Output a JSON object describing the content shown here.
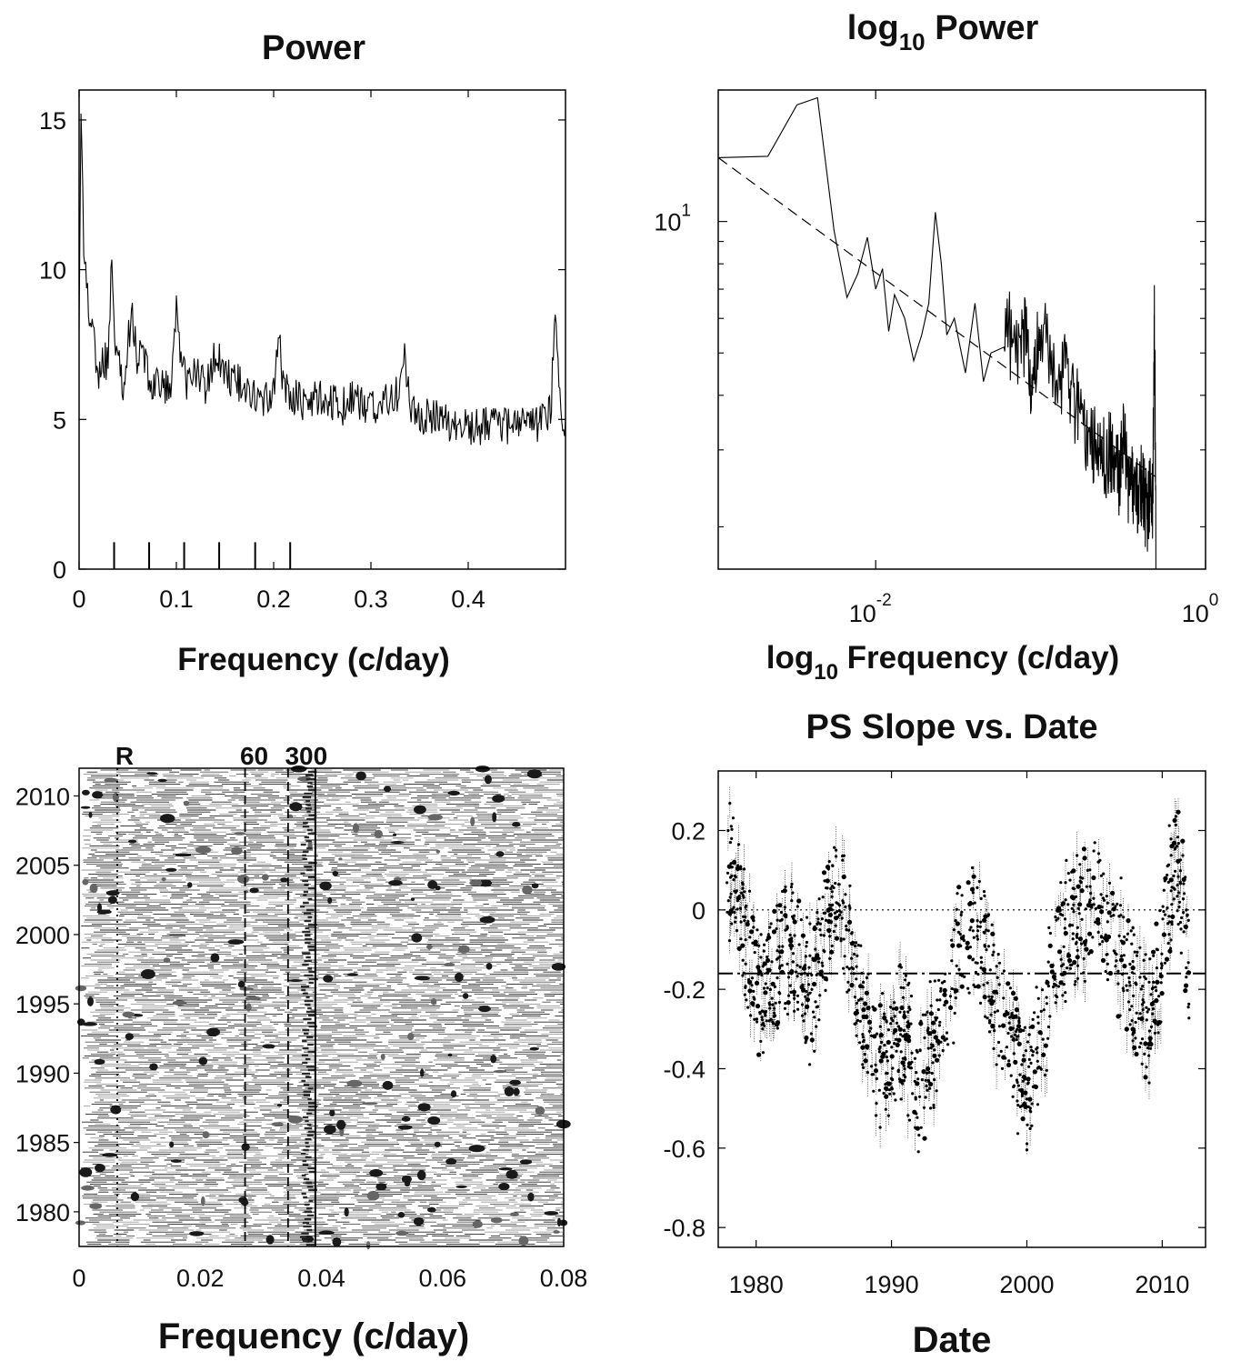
{
  "chart_data": [
    {
      "id": "power",
      "type": "line",
      "title": "Power",
      "xlabel": "Frequency (c/day)",
      "ylabel": "",
      "xlim": [
        0,
        0.5
      ],
      "ylim": [
        0,
        16
      ],
      "xticks": [
        0,
        0.1,
        0.2,
        0.3,
        0.4
      ],
      "xtick_labels": [
        "0",
        "0.1",
        "0.2",
        "0.3",
        "0.4"
      ],
      "yticks": [
        0,
        5,
        10,
        15
      ],
      "ytick_labels": [
        "0",
        "5",
        "10",
        "15"
      ],
      "markers_x": [
        0.036,
        0.072,
        0.108,
        0.144,
        0.181,
        0.217
      ],
      "markers_height": 0.9,
      "x": [
        0.0,
        0.002,
        0.005,
        0.01,
        0.015,
        0.02,
        0.025,
        0.03,
        0.033,
        0.036,
        0.04,
        0.045,
        0.05,
        0.055,
        0.06,
        0.065,
        0.07,
        0.075,
        0.08,
        0.085,
        0.09,
        0.095,
        0.1,
        0.105,
        0.11,
        0.12,
        0.13,
        0.14,
        0.15,
        0.16,
        0.17,
        0.18,
        0.19,
        0.2,
        0.205,
        0.21,
        0.22,
        0.23,
        0.24,
        0.25,
        0.26,
        0.27,
        0.28,
        0.29,
        0.3,
        0.31,
        0.32,
        0.33,
        0.335,
        0.34,
        0.35,
        0.36,
        0.37,
        0.38,
        0.39,
        0.4,
        0.41,
        0.42,
        0.43,
        0.44,
        0.45,
        0.46,
        0.47,
        0.48,
        0.485,
        0.49,
        0.495,
        0.5
      ],
      "y": [
        8.0,
        15.5,
        10.5,
        8.5,
        7.5,
        6.5,
        7.0,
        6.8,
        10.5,
        8.0,
        7.0,
        6.2,
        7.5,
        8.5,
        7.0,
        7.2,
        6.8,
        6.0,
        6.5,
        6.0,
        6.2,
        6.0,
        8.8,
        7.0,
        6.2,
        6.6,
        6.0,
        7.2,
        6.5,
        6.3,
        6.1,
        5.8,
        5.5,
        6.0,
        8.0,
        6.0,
        5.8,
        5.6,
        5.7,
        5.8,
        5.6,
        5.4,
        5.7,
        5.5,
        5.4,
        5.5,
        5.6,
        6.0,
        7.2,
        5.4,
        5.2,
        5.0,
        5.1,
        4.9,
        4.9,
        4.8,
        4.7,
        4.8,
        4.9,
        4.8,
        4.9,
        5.0,
        4.8,
        5.0,
        5.3,
        9.0,
        5.2,
        4.5
      ]
    },
    {
      "id": "log-power",
      "type": "line",
      "title": "log10 Power",
      "xlabel": "log10 Frequency (c/day)",
      "ylabel": "",
      "xscale": "log",
      "yscale": "log",
      "xlim": [
        0.00111,
        1
      ],
      "ylim": [
        1.6,
        20
      ],
      "xticks": [
        0.01,
        1
      ],
      "xtick_labels": [
        "10",
        "10"
      ],
      "xtick_exponents": [
        "-2",
        "0"
      ],
      "yticks": [
        10
      ],
      "ytick_labels": [
        "10"
      ],
      "ytick_exponents": [
        "1"
      ],
      "series": [
        {
          "style": "solid",
          "x": [
            0.00111,
            0.00222,
            0.00333,
            0.00444,
            0.0056,
            0.0067,
            0.0078,
            0.0089,
            0.01,
            0.011,
            0.012,
            0.013,
            0.015,
            0.017,
            0.019,
            0.021,
            0.023,
            0.025,
            0.027,
            0.03,
            0.035,
            0.04,
            0.045,
            0.05,
            0.06,
            0.07,
            0.08,
            0.09,
            0.1,
            0.12,
            0.14,
            0.16,
            0.18,
            0.2,
            0.22,
            0.24,
            0.26,
            0.28,
            0.3,
            0.32,
            0.34,
            0.36,
            0.38,
            0.4,
            0.42,
            0.44,
            0.46,
            0.48,
            0.49,
            0.5
          ],
          "y": [
            14.0,
            14.1,
            18.5,
            19.2,
            9.5,
            6.7,
            7.6,
            9.2,
            7.0,
            7.8,
            5.6,
            6.8,
            6.0,
            4.8,
            5.5,
            6.5,
            10.5,
            8.0,
            5.5,
            6.0,
            4.5,
            6.5,
            4.3,
            5.0,
            6.5,
            4.8,
            5.6,
            4.2,
            5.8,
            4.5,
            4.6,
            4.0,
            3.5,
            3.2,
            3.3,
            2.9,
            3.1,
            2.8,
            2.7,
            3.2,
            2.6,
            2.5,
            2.3,
            2.6,
            2.4,
            2.2,
            2.5,
            2.3,
            6.2,
            1.6
          ]
        },
        {
          "style": "dashed",
          "x": [
            0.00111,
            0.5
          ],
          "y": [
            14.0,
            2.6
          ]
        }
      ]
    },
    {
      "id": "spectrogram",
      "type": "heatmap",
      "title": "",
      "xlabel": "Frequency (c/day)",
      "ylabel": "",
      "xlim": [
        0,
        0.08
      ],
      "ylim": [
        1977.5,
        2012.0
      ],
      "xticks": [
        0,
        0.02,
        0.04,
        0.06,
        0.08
      ],
      "xtick_labels": [
        "0",
        "0.02",
        "0.04",
        "0.06",
        "0.08"
      ],
      "yticks": [
        1980,
        1985,
        1990,
        1995,
        2000,
        2005,
        2010
      ],
      "ytick_labels": [
        "1980",
        "1985",
        "1990",
        "1995",
        "2000",
        "2005",
        "2010"
      ],
      "reference_lines": [
        {
          "label": "R",
          "x": 0.0063,
          "style": "dotted"
        },
        {
          "label": "60",
          "x": 0.0274,
          "style": "dashed"
        },
        {
          "label": "300",
          "x": 0.0345,
          "style": "dashed"
        },
        {
          "label": "",
          "x": 0.039,
          "style": "solid"
        }
      ]
    },
    {
      "id": "ps-slope",
      "type": "scatter",
      "title": "PS Slope vs. Date",
      "xlabel": "Date",
      "ylabel": "",
      "xlim": [
        1977.2,
        2013.2
      ],
      "ylim": [
        -0.85,
        0.35
      ],
      "xticks": [
        1980,
        1990,
        2000,
        2010
      ],
      "xtick_labels": [
        "1980",
        "1990",
        "2000",
        "2010"
      ],
      "yticks": [
        0.2,
        0,
        -0.2,
        -0.4,
        -0.6,
        -0.8
      ],
      "ytick_labels": [
        "0.2",
        "0",
        "-0.2",
        "-0.4",
        "-0.6",
        "-0.8"
      ],
      "hlines": [
        {
          "y": 0,
          "style": "dotted"
        },
        {
          "y": -0.16,
          "style": "dashdot"
        }
      ],
      "trend": {
        "x": [
          1977.8,
          1978.2,
          1979,
          1980,
          1981,
          1982,
          1983,
          1984,
          1985,
          1986,
          1987,
          1988,
          1989,
          1990,
          1991,
          1992,
          1993,
          1994,
          1995,
          1996,
          1997,
          1998,
          1999,
          2000,
          2001,
          2002,
          2003,
          2004,
          2005,
          2006,
          2007,
          2008,
          2009,
          2010,
          2011,
          2012
        ],
        "y": [
          0.02,
          0.12,
          -0.05,
          -0.2,
          -0.18,
          -0.1,
          -0.12,
          -0.22,
          -0.05,
          0.05,
          -0.1,
          -0.3,
          -0.4,
          -0.35,
          -0.3,
          -0.45,
          -0.35,
          -0.25,
          -0.1,
          -0.05,
          -0.15,
          -0.25,
          -0.35,
          -0.45,
          -0.3,
          -0.15,
          -0.05,
          -0.02,
          0.02,
          -0.05,
          -0.1,
          -0.2,
          -0.3,
          -0.1,
          0.15,
          -0.15
        ]
      }
    }
  ]
}
